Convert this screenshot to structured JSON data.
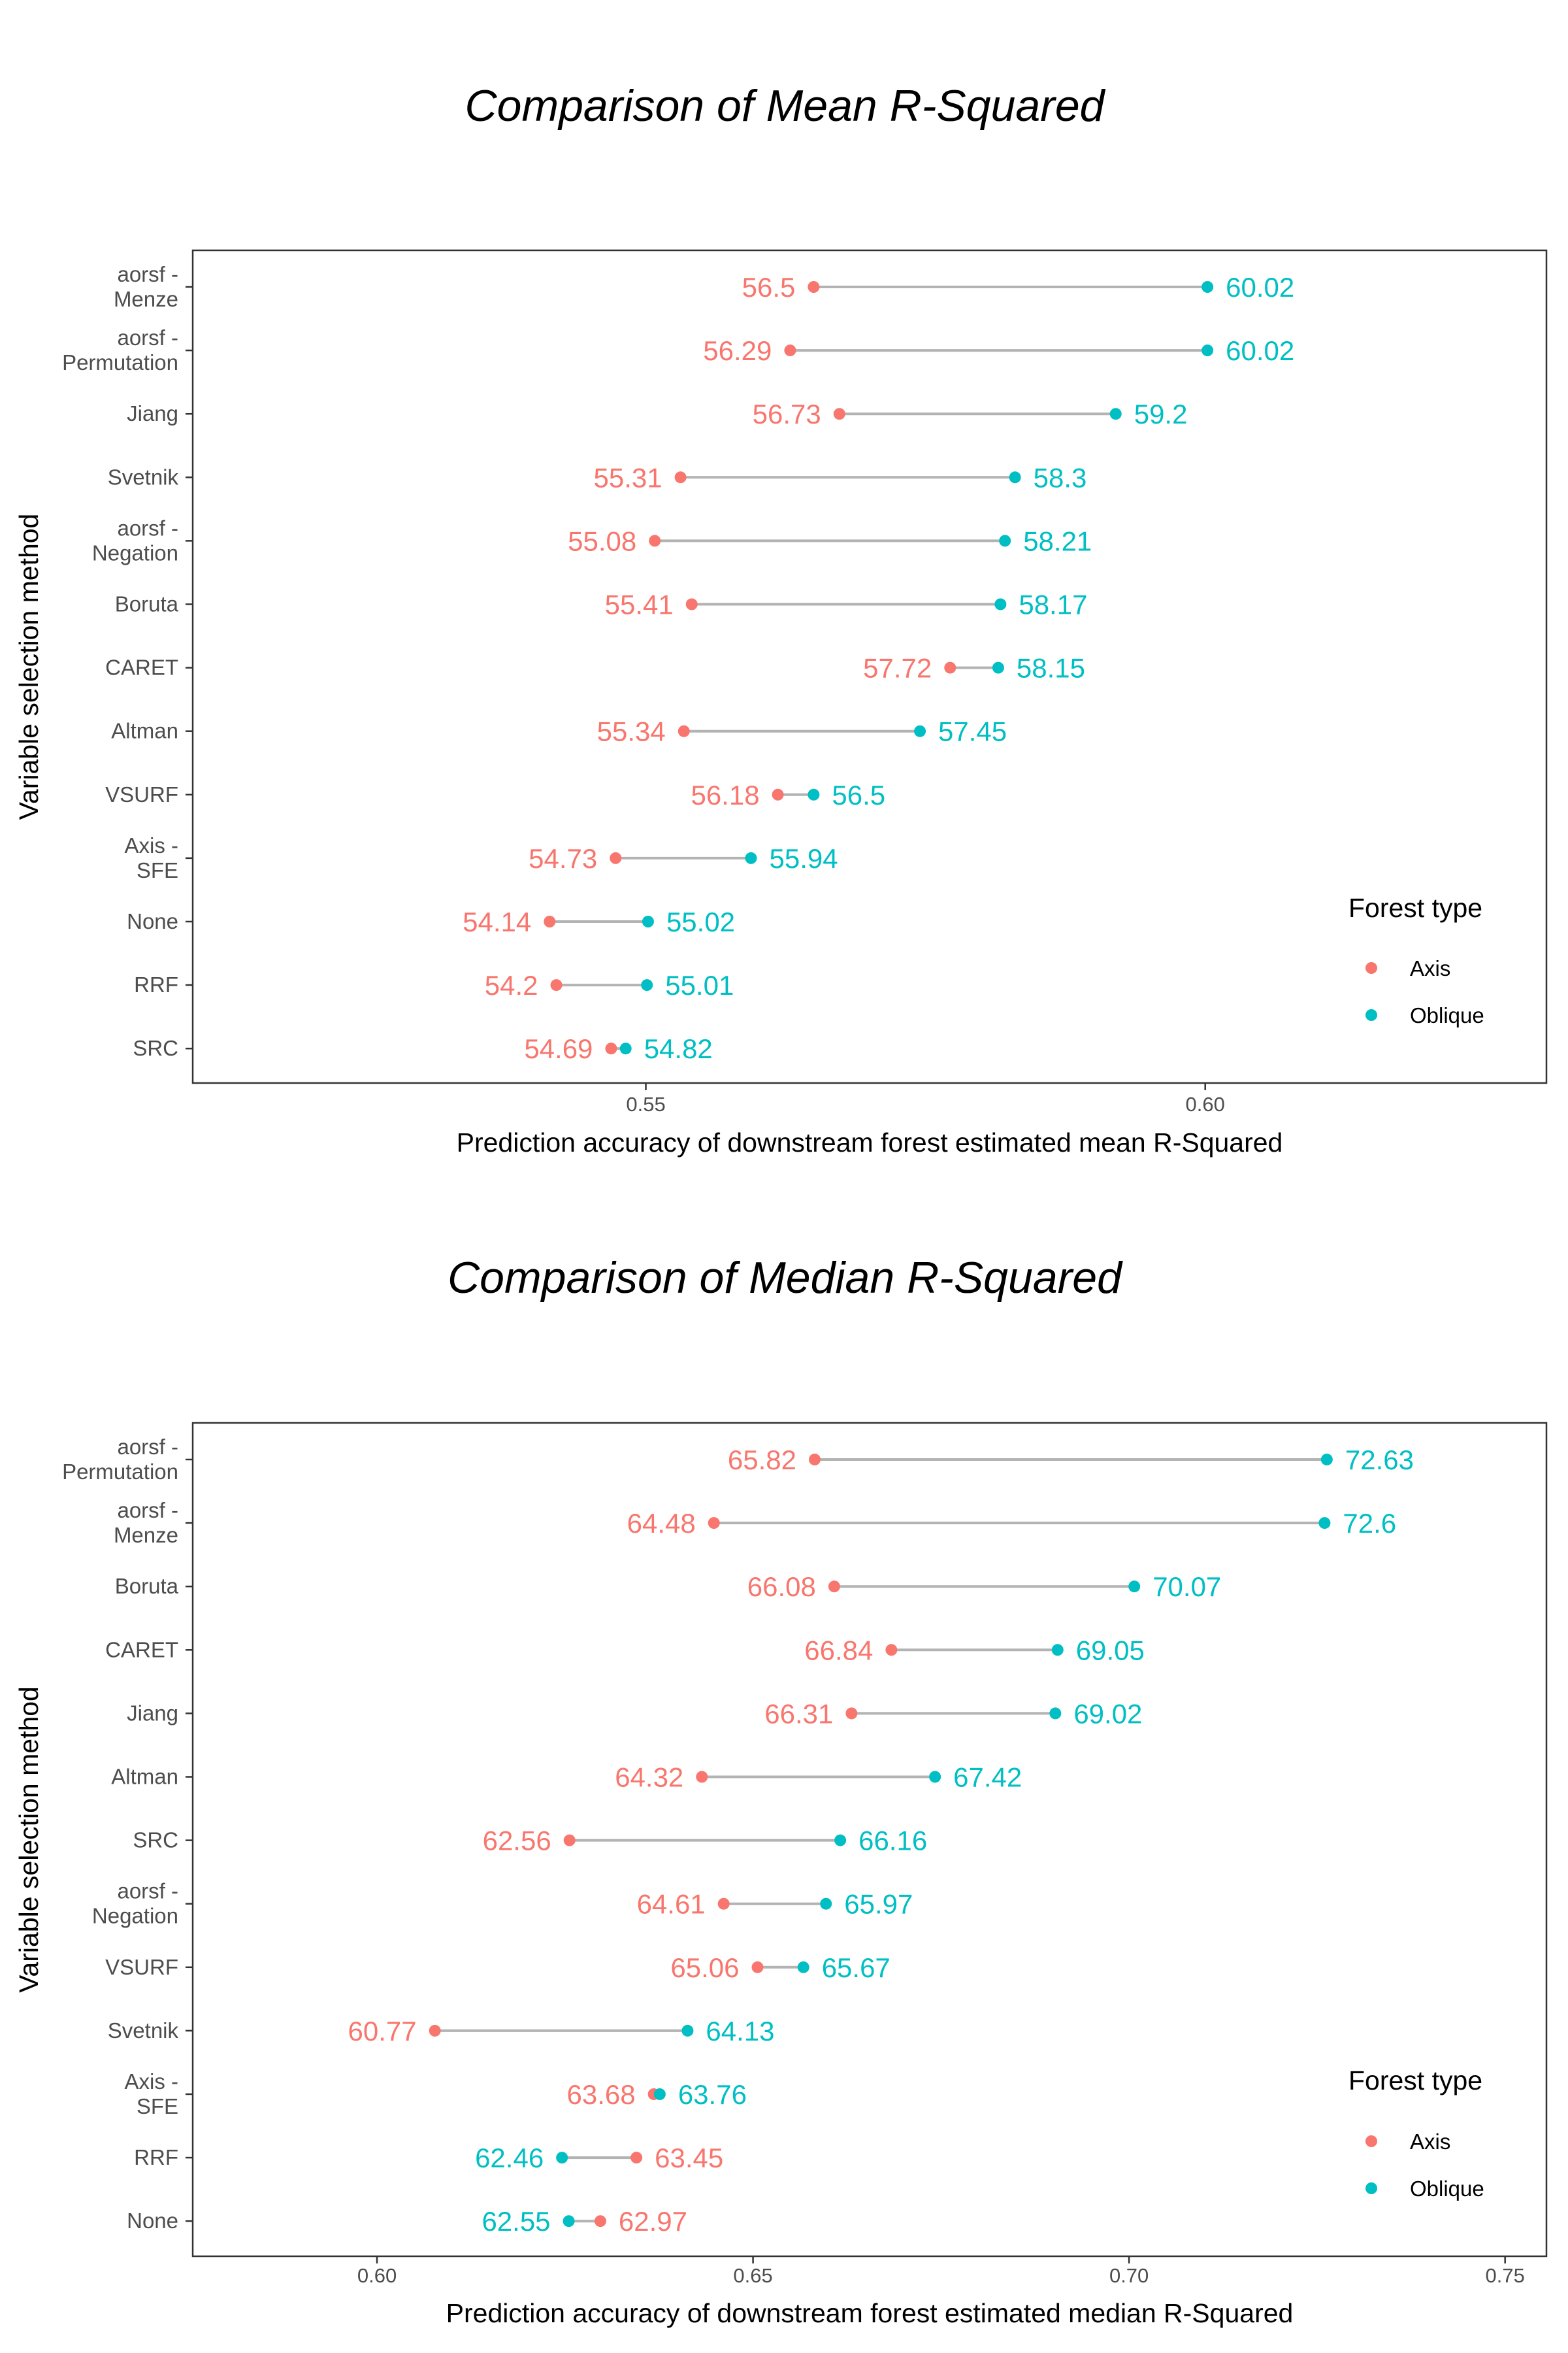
{
  "colors": {
    "axis": "#F8766D",
    "oblique": "#00BFC4",
    "segment": "#b3b3b3",
    "panel_border": "#333333"
  },
  "chart_data": [
    {
      "type": "dumbbell",
      "title": "Comparison of Mean R-Squared",
      "xlabel": "Prediction accuracy of downstream forest estimated mean R-Squared",
      "ylabel": "Variable selection method",
      "xlim": [
        0.5095,
        0.6305
      ],
      "xticks": [
        "0.55",
        "0.60"
      ],
      "grid": false,
      "legend": {
        "title": "Forest type",
        "entries": [
          "Axis",
          "Oblique"
        ],
        "placement": "right"
      },
      "categories": [
        "aorsf -\nMenze",
        "aorsf -\nPermutation",
        "Jiang",
        "Svetnik",
        "aorsf -\nNegation",
        "Boruta",
        "CARET",
        "Altman",
        "VSURF",
        "Axis -\nSFE",
        "None",
        "RRF",
        "SRC"
      ],
      "series": [
        {
          "name": "Axis",
          "values": [
            56.5,
            56.29,
            56.73,
            55.31,
            55.08,
            55.41,
            57.72,
            55.34,
            56.18,
            54.73,
            54.14,
            54.2,
            54.69
          ]
        },
        {
          "name": "Oblique",
          "values": [
            60.02,
            60.02,
            59.2,
            58.3,
            58.21,
            58.17,
            58.15,
            57.45,
            56.5,
            55.94,
            55.02,
            55.01,
            54.82
          ]
        }
      ]
    },
    {
      "type": "dumbbell",
      "title": "Comparison of Median R-Squared",
      "xlabel": "Prediction accuracy of downstream forest estimated median R-Squared",
      "ylabel": "Variable selection method",
      "xlim": [
        0.5755,
        0.7555
      ],
      "xticks": [
        "0.60",
        "0.65",
        "0.70",
        "0.75"
      ],
      "grid": false,
      "legend": {
        "title": "Forest type",
        "entries": [
          "Axis",
          "Oblique"
        ],
        "placement": "right"
      },
      "categories": [
        "aorsf -\nPermutation",
        "aorsf -\nMenze",
        "Boruta",
        "CARET",
        "Jiang",
        "Altman",
        "SRC",
        "aorsf -\nNegation",
        "VSURF",
        "Svetnik",
        "Axis -\nSFE",
        "RRF",
        "None"
      ],
      "series": [
        {
          "name": "Axis",
          "values": [
            65.82,
            64.48,
            66.08,
            66.84,
            66.31,
            64.32,
            62.56,
            64.61,
            65.06,
            60.77,
            63.68,
            63.45,
            62.97
          ]
        },
        {
          "name": "Oblique",
          "values": [
            72.63,
            72.6,
            70.07,
            69.05,
            69.02,
            67.42,
            66.16,
            65.97,
            65.67,
            64.13,
            63.76,
            62.46,
            62.55
          ]
        }
      ]
    }
  ]
}
